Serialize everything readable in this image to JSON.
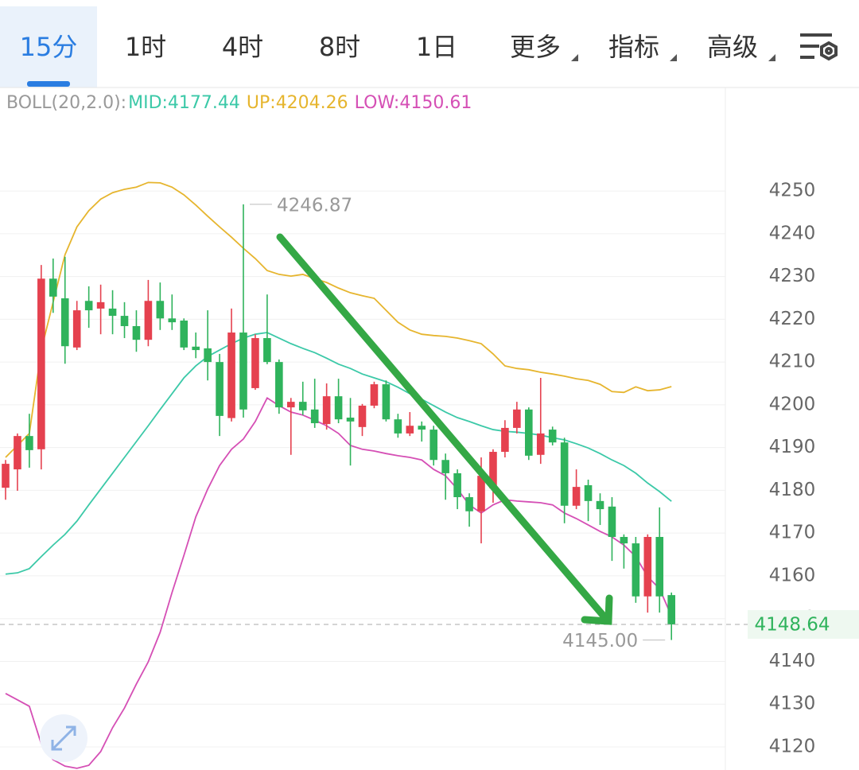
{
  "tabs": [
    "15分",
    "1时",
    "4时",
    "8时",
    "1日",
    "更多",
    "指标",
    "高级"
  ],
  "indicator": {
    "label": "BOLL(20,2.0):",
    "entries": [
      "MID:4177.44",
      "UP:4204.26",
      "LOW:4150.61"
    ]
  },
  "chart_data": {
    "type": "candlestick",
    "categories": [
      null,
      null,
      null,
      null,
      null,
      null,
      null,
      null,
      null,
      null,
      null,
      null,
      null,
      null,
      null,
      null,
      null,
      null,
      null,
      null,
      null,
      null,
      null,
      null,
      null,
      null,
      null,
      null,
      null,
      null,
      null,
      null,
      null,
      null,
      null,
      null,
      null,
      null,
      null,
      null,
      null,
      null,
      null,
      null,
      null,
      null,
      null,
      null,
      null,
      null,
      null,
      null,
      null,
      null,
      null,
      null,
      null
    ],
    "open": [
      4180.6,
      4184.9,
      4192.7,
      4189.6,
      4229.5,
      4224.9,
      4213.4,
      4224.3,
      4222.5,
      4222.5,
      4220.8,
      4218.4,
      4215.2,
      4224.3,
      4220.2,
      4219.7,
      4213.6,
      4213.2,
      4210.0,
      4196.9,
      4216.9,
      4203.9,
      4215.6,
      4210.0,
      4199.4,
      4200.7,
      4198.9,
      4195.5,
      4202.0,
      4197.0,
      4194.8,
      4199.8,
      4204.8,
      4196.6,
      4193.3,
      4195.1,
      4194.2,
      4187.1,
      4184.0,
      4178.4,
      4175.1,
      4180.5,
      4189.0,
      4194.6,
      4198.9,
      4188.3,
      4194.2,
      4191.2,
      4176.4,
      4181.2,
      4177.5,
      4176.2,
      4169.1,
      4167.6,
      4155.2,
      4169.1,
      4155.5
    ],
    "high": [
      4187.1,
      4193.3,
      4197.9,
      4232.7,
      4234.2,
      4234.6,
      4224.3,
      4227.7,
      4228.1,
      4226.8,
      4224.0,
      4222.1,
      4229.2,
      4228.6,
      4225.8,
      4220.2,
      4216.9,
      4222.1,
      4211.9,
      4222.5,
      4246.87,
      4216.5,
      4225.8,
      4210.6,
      4201.6,
      4205.4,
      4206.1,
      4205.0,
      4206.1,
      4201.6,
      4200.2,
      4205.4,
      4205.7,
      4197.9,
      4198.3,
      4196.1,
      4195.1,
      4188.6,
      4184.9,
      4179.3,
      4187.7,
      4189.6,
      4196.4,
      4200.7,
      4199.4,
      4206.3,
      4194.9,
      4192.3,
      4184.9,
      4182.5,
      4179.3,
      4178.4,
      4169.7,
      4169.1,
      4169.7,
      4176.0,
      4156.1
    ],
    "low": [
      4177.8,
      4179.9,
      4185.3,
      4184.9,
      4221.5,
      4209.6,
      4212.8,
      4218.0,
      4216.5,
      4216.5,
      4215.6,
      4212.4,
      4213.7,
      4217.5,
      4217.5,
      4212.8,
      4210.9,
      4205.7,
      4192.7,
      4196.1,
      4197.0,
      4203.5,
      4209.5,
      4197.9,
      4188.3,
      4197.6,
      4194.6,
      4194.2,
      4195.7,
      4185.8,
      4192.7,
      4199.2,
      4196.1,
      4192.3,
      4192.7,
      4191.4,
      4185.8,
      4177.8,
      4175.6,
      4171.5,
      4167.6,
      4177.1,
      4187.7,
      4193.3,
      4187.1,
      4186.2,
      4190.5,
      4172.3,
      4175.6,
      4172.8,
      4171.9,
      4163.5,
      4161.7,
      4153.7,
      4151.4,
      4151.4,
      4145
    ],
    "close": [
      4186.2,
      4192.7,
      4189.4,
      4229.5,
      4225.3,
      4213.7,
      4222.1,
      4222.1,
      4224.0,
      4220.8,
      4218.4,
      4215.2,
      4224.3,
      4220.2,
      4219.3,
      4213.4,
      4212.8,
      4210.0,
      4197.4,
      4216.9,
      4198.9,
      4215.6,
      4210.0,
      4199.4,
      4200.7,
      4198.7,
      4195.7,
      4202.0,
      4196.6,
      4196.1,
      4199.8,
      4204.8,
      4196.6,
      4193.3,
      4195.1,
      4194.2,
      4187.1,
      4184.0,
      4178.4,
      4175.1,
      4183.4,
      4189.0,
      4194.6,
      4198.9,
      4188.1,
      4193.3,
      4191.2,
      4176.4,
      4180.8,
      4177.5,
      4175.6,
      4169.1,
      4167.6,
      4155.2,
      4169.1,
      4155.2,
      4148.64
    ],
    "up_color": "#e5414f",
    "down_color": "#2fb35c",
    "lines": [
      {
        "name": "MID",
        "color": "#3cc9a8",
        "values": [
          4160.4,
          4160.7,
          4161.7,
          4164.5,
          4167.2,
          4169.7,
          4172.8,
          4176.6,
          4180.3,
          4184.0,
          4187.7,
          4191.4,
          4195.1,
          4198.9,
          4202.6,
          4206.3,
          4209.1,
          4211.3,
          4212.8,
          4214.3,
          4215.6,
          4216.5,
          4216.9,
          4215.6,
          4214.3,
          4213.2,
          4212.2,
          4210.9,
          4209.5,
          4208.5,
          4207.2,
          4206.3,
          4205.4,
          4204.1,
          4202.6,
          4201.3,
          4199.8,
          4198.3,
          4197.0,
          4196.1,
          4195.1,
          4194.2,
          4193.8,
          4193.6,
          4193.3,
          4192.9,
          4192.3,
          4191.8,
          4190.9,
          4189.9,
          4188.6,
          4187.1,
          4185.8,
          4184.0,
          4181.7,
          4179.7,
          4177.44
        ]
      },
      {
        "name": "UP",
        "color": "#e6b52e",
        "values": [
          4187.7,
          4190.5,
          4193.3,
          4212.8,
          4224.0,
          4235.1,
          4241.6,
          4245.4,
          4248.1,
          4249.6,
          4250.4,
          4250.9,
          4252.0,
          4251.9,
          4250.9,
          4249.1,
          4246.7,
          4244.1,
          4241.6,
          4239.2,
          4236.6,
          4234.2,
          4231.4,
          4230.5,
          4230.1,
          4230.5,
          4229.5,
          4228.6,
          4227.3,
          4226.2,
          4225.5,
          4224.9,
          4222.1,
          4219.3,
          4217.5,
          4216.5,
          4216.2,
          4216.0,
          4215.6,
          4215.0,
          4214.3,
          4211.9,
          4209.1,
          4208.5,
          4208.2,
          4207.6,
          4207.2,
          4206.7,
          4206.1,
          4205.7,
          4204.8,
          4203.1,
          4202.9,
          4204.2,
          4203.3,
          4203.5,
          4204.26
        ]
      },
      {
        "name": "LOW",
        "color": "#d54fb5",
        "values": [
          4132.5,
          4131.0,
          4129.5,
          4120.7,
          4117.0,
          4115.5,
          4115.0,
          4115.7,
          4118.9,
          4124.5,
          4129.1,
          4134.7,
          4139.9,
          4146.8,
          4156.1,
          4164.8,
          4173.8,
          4180.3,
          4185.8,
          4189.6,
          4192.0,
          4196.1,
          4201.6,
          4199.8,
          4198.3,
          4197.6,
          4196.4,
          4195.1,
          4193.3,
          4190.5,
          4189.6,
          4189.2,
          4188.6,
          4188.1,
          4187.7,
          4187.1,
          4184.9,
          4183.4,
          4180.3,
          4176.6,
          4174.7,
          4176.6,
          4177.8,
          4177.5,
          4177.3,
          4177.1,
          4176.6,
          4174.7,
          4173.4,
          4171.9,
          4170.4,
          4169.1,
          4167.2,
          4164.5,
          4159.8,
          4157.0,
          4150.61
        ]
      }
    ],
    "annotations": [
      {
        "value": 4246.87,
        "label": "4246.87"
      },
      {
        "value": 4145,
        "label": "4145.00"
      }
    ],
    "ylim": [
      4114.6,
      4274.2
    ],
    "yticks": [
      4120,
      4130,
      4140,
      4150,
      4160,
      4170,
      4180,
      4190,
      4200,
      4210,
      4220,
      4230,
      4240,
      4250
    ],
    "grid": true
  }
}
